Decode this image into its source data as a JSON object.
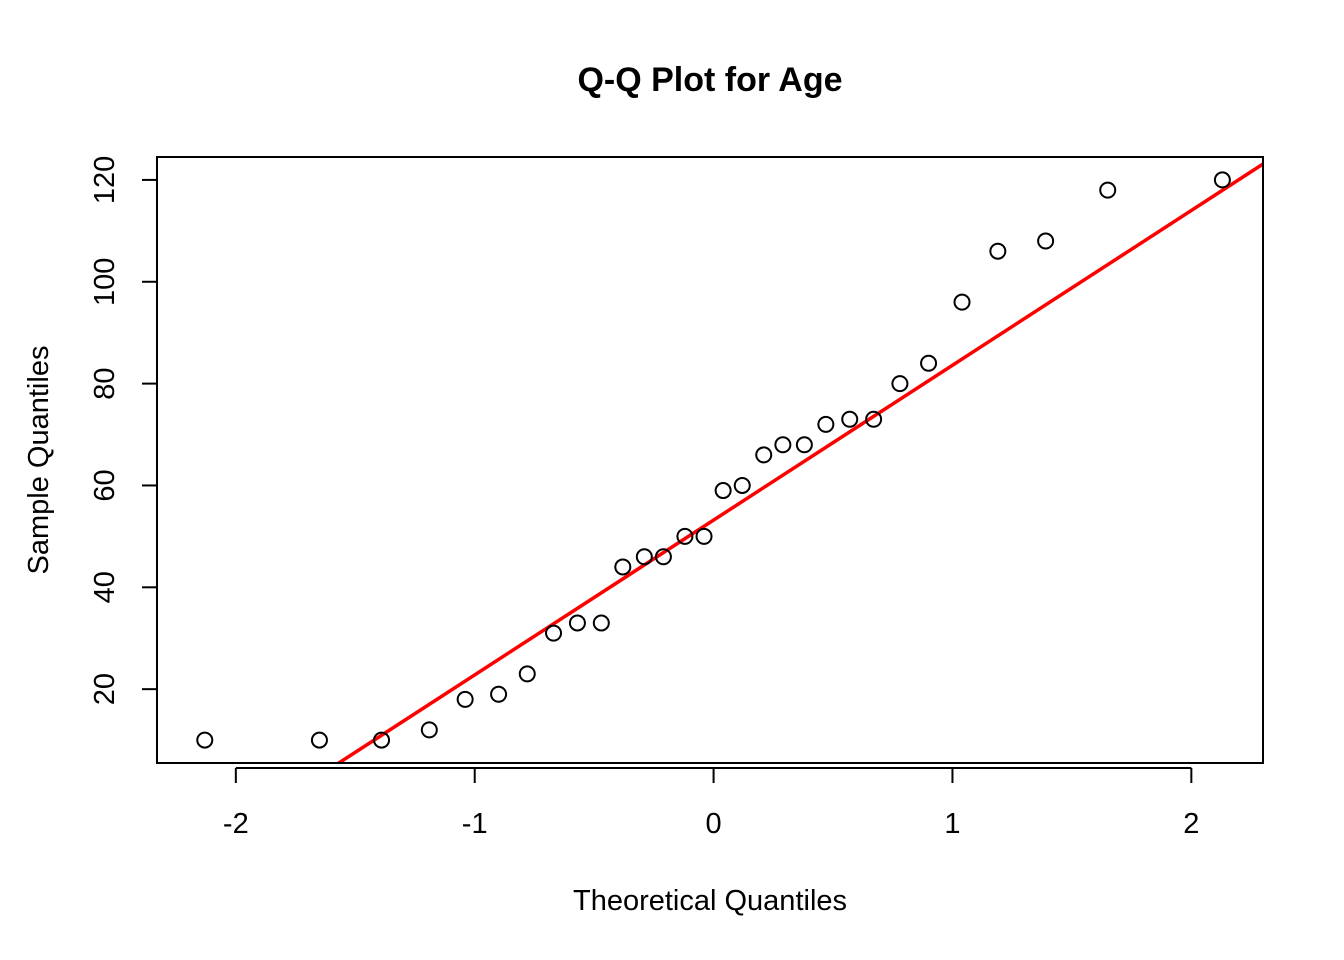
{
  "chart_data": {
    "type": "scatter",
    "title": "Q-Q Plot for Age",
    "xlabel": "Theoretical Quantiles",
    "ylabel": "Sample Quantiles",
    "xlim": [
      -2.33,
      2.3
    ],
    "ylim": [
      5.5,
      124.5
    ],
    "x_ticks": [
      -2,
      -1,
      0,
      1,
      2
    ],
    "x_tick_labels": [
      "-2",
      "-1",
      "0",
      "1",
      "2"
    ],
    "y_ticks": [
      20,
      40,
      60,
      80,
      100,
      120
    ],
    "y_tick_labels": [
      "20",
      "40",
      "60",
      "80",
      "100",
      "120"
    ],
    "grid": false,
    "point_style": "open-circle",
    "points": [
      {
        "x": -2.13,
        "y": 10
      },
      {
        "x": -1.65,
        "y": 10
      },
      {
        "x": -1.39,
        "y": 10
      },
      {
        "x": -1.19,
        "y": 12
      },
      {
        "x": -1.04,
        "y": 18
      },
      {
        "x": -0.9,
        "y": 19
      },
      {
        "x": -0.78,
        "y": 23
      },
      {
        "x": -0.67,
        "y": 31
      },
      {
        "x": -0.57,
        "y": 33
      },
      {
        "x": -0.47,
        "y": 33
      },
      {
        "x": -0.38,
        "y": 44
      },
      {
        "x": -0.29,
        "y": 46
      },
      {
        "x": -0.21,
        "y": 46
      },
      {
        "x": -0.12,
        "y": 50
      },
      {
        "x": -0.04,
        "y": 50
      },
      {
        "x": 0.04,
        "y": 59
      },
      {
        "x": 0.12,
        "y": 60
      },
      {
        "x": 0.21,
        "y": 66
      },
      {
        "x": 0.29,
        "y": 68
      },
      {
        "x": 0.38,
        "y": 68
      },
      {
        "x": 0.47,
        "y": 72
      },
      {
        "x": 0.57,
        "y": 73
      },
      {
        "x": 0.67,
        "y": 73
      },
      {
        "x": 0.78,
        "y": 80
      },
      {
        "x": 0.9,
        "y": 84
      },
      {
        "x": 1.04,
        "y": 96
      },
      {
        "x": 1.19,
        "y": 106
      },
      {
        "x": 1.39,
        "y": 108
      },
      {
        "x": 1.65,
        "y": 118
      },
      {
        "x": 2.13,
        "y": 120
      }
    ],
    "reference_line": {
      "intercept": 53.2,
      "slope": 30.4,
      "color": "#ff0000"
    }
  }
}
